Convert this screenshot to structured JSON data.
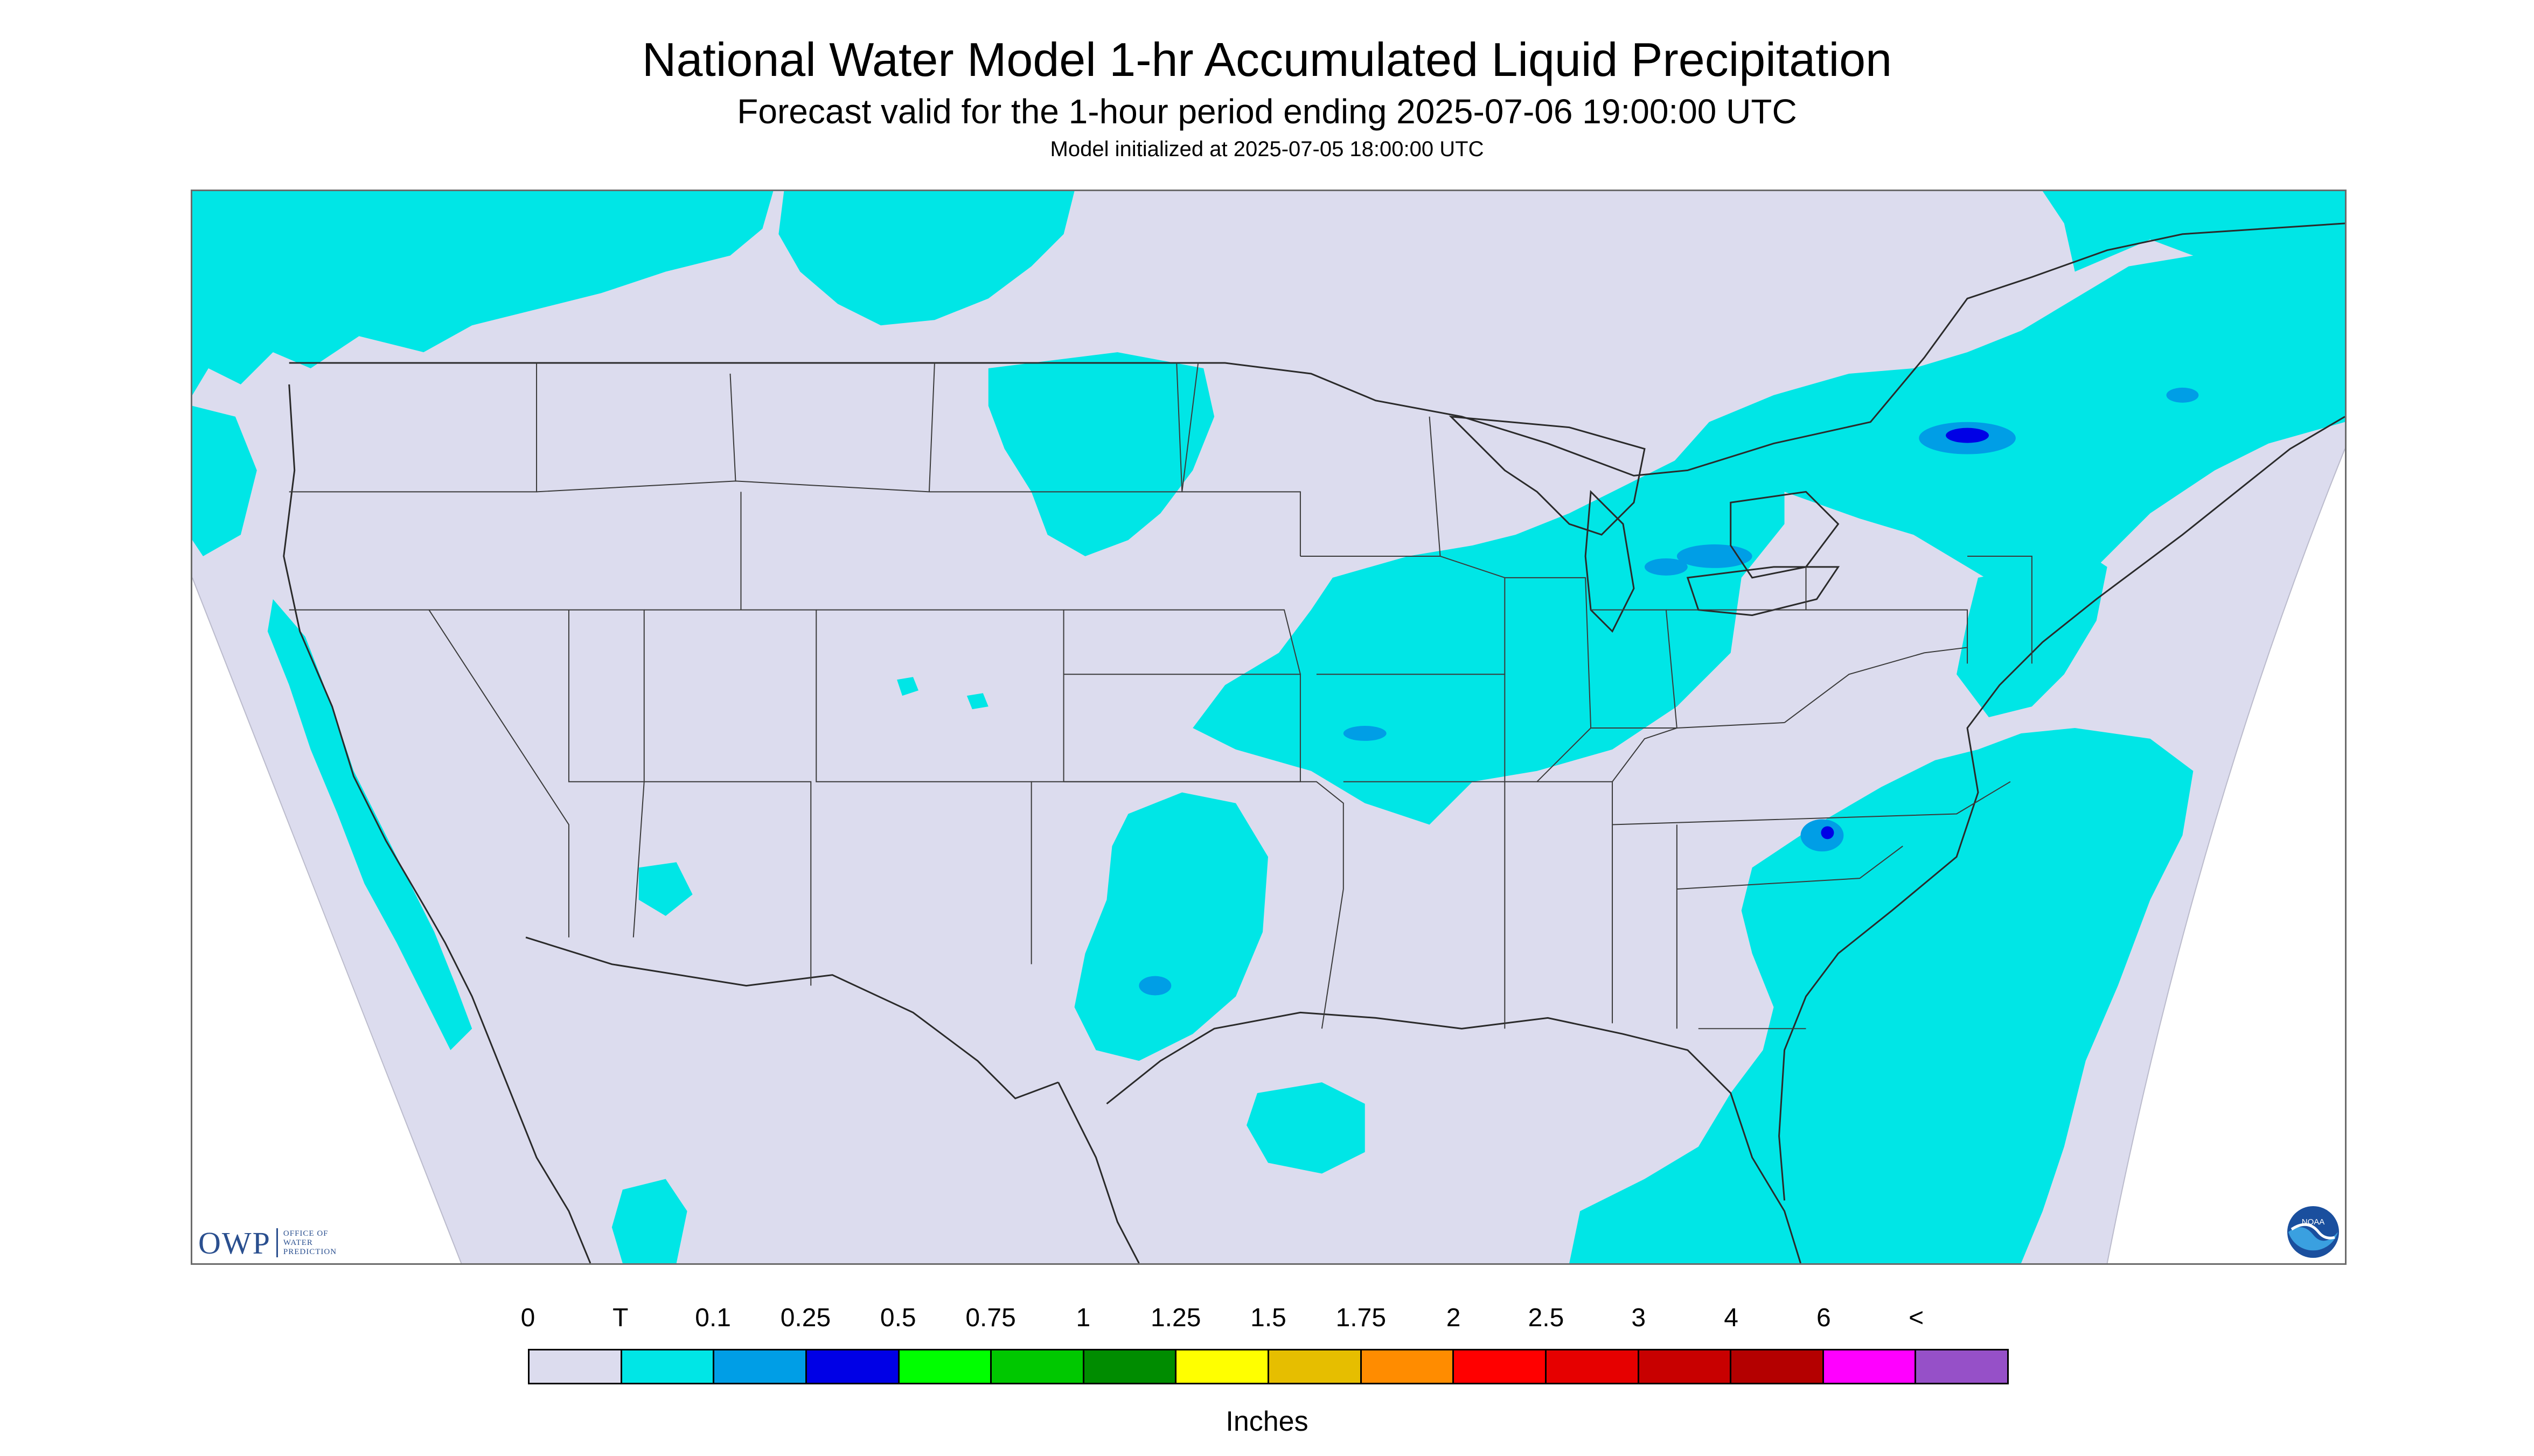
{
  "header": {
    "title": "National Water Model 1-hr Accumulated Liquid Precipitation",
    "subtitle": "Forecast valid for the 1-hour period ending 2025-07-06 19:00:00 UTC",
    "init": "Model initialized at 2025-07-05 18:00:00 UTC"
  },
  "map": {
    "background_color": "#dcdcee",
    "outside_color": "#ffffff",
    "precip_trace_color": "#00e6e6",
    "precip_light_color": "#009ee6",
    "precip_heavy_color": "#0000e6",
    "boundary_color": "#2a2a2a"
  },
  "logos": {
    "owp_big": "OWP",
    "owp_small_1": "OFFICE OF",
    "owp_small_2": "WATER",
    "owp_small_3": "PREDICTION",
    "noaa": "NOAA"
  },
  "legend": {
    "tick_labels": [
      "0",
      "T",
      "0.1",
      "0.25",
      "0.5",
      "0.75",
      "1",
      "1.25",
      "1.5",
      "1.75",
      "2",
      "2.5",
      "3",
      "4",
      "6",
      "<"
    ],
    "colors": [
      "#dcdcee",
      "#00e6e6",
      "#009ee6",
      "#0000e6",
      "#00ff00",
      "#00c800",
      "#008c00",
      "#ffff00",
      "#e6be00",
      "#ff8c00",
      "#ff0000",
      "#e60000",
      "#c80000",
      "#b40000",
      "#ff00ff",
      "#9650c8"
    ],
    "units": "Inches"
  }
}
